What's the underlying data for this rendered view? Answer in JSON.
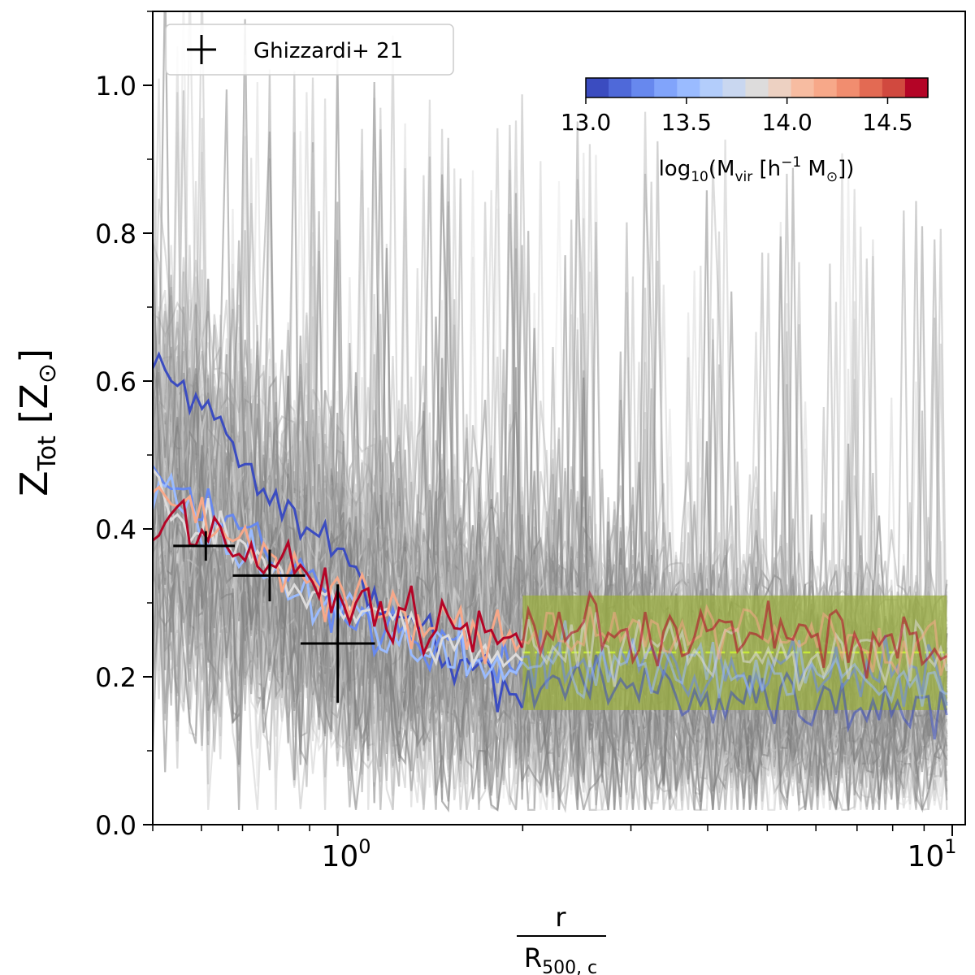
{
  "chart_data": {
    "type": "line",
    "xscale": "log",
    "xlim": [
      0.5,
      10.5
    ],
    "ylim": [
      0.0,
      1.1
    ],
    "xlabel_num": "r",
    "xlabel_den_main": "R",
    "xlabel_den_sub": "500, c",
    "ylabel_main": "Z",
    "ylabel_sub": "Tot",
    "ylabel_unit": "[Z",
    "ylabel_sun": "⊙",
    "ylabel_close": "]",
    "x_major_ticks": [
      1,
      10
    ],
    "x_tick_base": "10",
    "x_tick_exps": [
      "0",
      "1"
    ],
    "y_ticks": [
      0.0,
      0.2,
      0.4,
      0.6,
      0.8,
      1.0
    ],
    "y_tick_labels": [
      "0.0",
      "0.2",
      "0.4",
      "0.6",
      "0.8",
      "1.0"
    ],
    "legend": {
      "label": "Ghizzardi+ 21",
      "position": "top-left"
    },
    "ghizzardi_points": [
      {
        "x": 0.61,
        "y": 0.377,
        "xerr": [
          0.07,
          0.07
        ],
        "yerr": [
          0.02,
          0.02
        ]
      },
      {
        "x": 0.775,
        "y": 0.337,
        "xerr": [
          0.1,
          0.11
        ],
        "yerr": [
          0.035,
          0.035
        ]
      },
      {
        "x": 1.0,
        "y": 0.245,
        "xerr": [
          0.13,
          0.15
        ],
        "yerr": [
          0.08,
          0.08
        ]
      }
    ],
    "colorbar": {
      "label_pre": "log",
      "label_sub": "10",
      "label_mid": "(M",
      "label_vir": "vir",
      "label_units": " [h",
      "label_exp": "−1",
      "label_msun": " M",
      "label_sun": "⊙",
      "label_end": "])",
      "range": [
        13.0,
        14.7
      ],
      "ticks": [
        13.0,
        13.5,
        14.0,
        14.5
      ],
      "tick_labels": [
        "13.0",
        "13.5",
        "14.0",
        "14.5"
      ],
      "colors": [
        "#3b4cc0",
        "#4f69d9",
        "#6788ee",
        "#81a4fb",
        "#9abbff",
        "#b3cdfb",
        "#c9d7f0",
        "#dddcdc",
        "#edd1c2",
        "#f7bca1",
        "#f7a889",
        "#f18d6f",
        "#e36a53",
        "#d1493f",
        "#b40426"
      ]
    },
    "outer_band": {
      "x_range": [
        2.0,
        9.8
      ],
      "y_range": [
        0.155,
        0.31
      ],
      "y_mean": 0.233,
      "color": "#9aae3a"
    },
    "gray_profiles": {
      "count": 110,
      "description": "individual halo profiles (outside selection)"
    },
    "highlighted_profiles": [
      {
        "logmass": 13.05,
        "inner": [
          0.62,
          0.6,
          0.58,
          0.56,
          0.52,
          0.47,
          0.44,
          0.42,
          0.4,
          0.36,
          0.33,
          0.3,
          0.28,
          0.26,
          0.24,
          0.22,
          0.2,
          0.18,
          0.17
        ]
      },
      {
        "logmass": 13.3,
        "inner": [
          0.48,
          0.46,
          0.44,
          0.43,
          0.41,
          0.38,
          0.36,
          0.34,
          0.32,
          0.3,
          0.29,
          0.27,
          0.26,
          0.25,
          0.24,
          0.23,
          0.22,
          0.21,
          0.2
        ]
      },
      {
        "logmass": 13.5,
        "inner": [
          0.47,
          0.45,
          0.42,
          0.4,
          0.38,
          0.36,
          0.34,
          0.33,
          0.31,
          0.29,
          0.28,
          0.26,
          0.25,
          0.24,
          0.23,
          0.23,
          0.22,
          0.21,
          0.2
        ]
      },
      {
        "logmass": 13.8,
        "inner": [
          0.45,
          0.43,
          0.41,
          0.4,
          0.38,
          0.37,
          0.35,
          0.33,
          0.31,
          0.3,
          0.29,
          0.28,
          0.27,
          0.26,
          0.25,
          0.24,
          0.24,
          0.23,
          0.23
        ]
      },
      {
        "logmass": 14.2,
        "inner": [
          0.46,
          0.44,
          0.42,
          0.41,
          0.39,
          0.38,
          0.36,
          0.34,
          0.32,
          0.31,
          0.3,
          0.29,
          0.28,
          0.27,
          0.27,
          0.26,
          0.26,
          0.25,
          0.25
        ]
      },
      {
        "logmass": 14.7,
        "inner": [
          0.41,
          0.42,
          0.4,
          0.39,
          0.38,
          0.36,
          0.35,
          0.34,
          0.32,
          0.31,
          0.3,
          0.29,
          0.28,
          0.27,
          0.27,
          0.26,
          0.26,
          0.25,
          0.25
        ]
      }
    ]
  }
}
